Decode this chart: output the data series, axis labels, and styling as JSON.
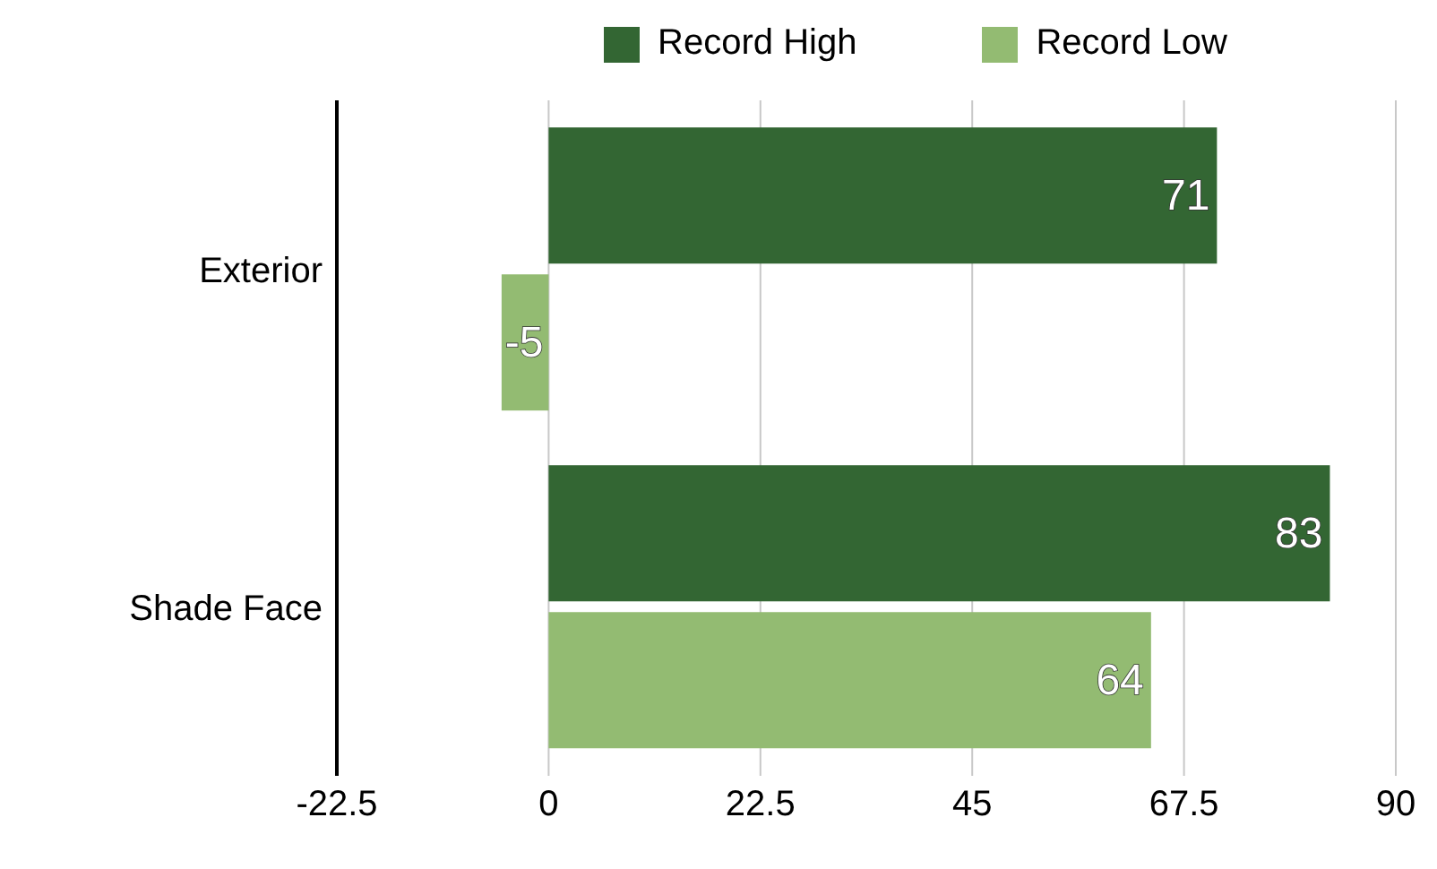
{
  "chart_data": {
    "type": "bar",
    "orientation": "horizontal",
    "categories": [
      "Exterior",
      "Shade Face"
    ],
    "series": [
      {
        "name": "Record High",
        "color": "#336633",
        "values": [
          71,
          83
        ]
      },
      {
        "name": "Record Low",
        "color": "#93bb72",
        "values": [
          -5,
          64
        ]
      }
    ],
    "xlim": [
      -22.5,
      90
    ],
    "xticks": [
      -22.5,
      0,
      22.5,
      45,
      67.5,
      90
    ],
    "grid": "x",
    "legend": "top",
    "data_labels": true
  }
}
